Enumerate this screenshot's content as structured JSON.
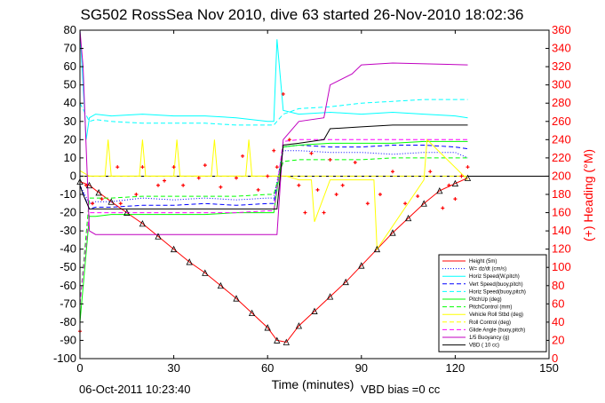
{
  "chart_data": {
    "type": "line",
    "title": "SG502 RossSea Nov 2010, dive 63 started 26-Nov-2010 18:02:36",
    "xlabel": "Time (minutes)",
    "ylabel_right": "(+) Heading (°M)",
    "xlim": [
      0,
      150
    ],
    "ylim": [
      -100,
      80
    ],
    "ylim_right": [
      0,
      360
    ],
    "x_ticks": [
      0,
      30,
      60,
      90,
      120,
      150
    ],
    "y_ticks": [
      -100,
      -90,
      -80,
      -70,
      -60,
      -50,
      -40,
      -30,
      -20,
      -10,
      0,
      10,
      20,
      30,
      40,
      50,
      60,
      70,
      80
    ],
    "y_right_ticks": [
      0,
      20,
      40,
      60,
      80,
      100,
      120,
      140,
      160,
      180,
      200,
      220,
      240,
      260,
      280,
      300,
      320,
      340,
      360
    ],
    "grid": false,
    "legend_position": "bottom-right",
    "series": [
      {
        "name": "Height (5m)",
        "color": "#ff0000",
        "style": "solid",
        "x": [
          0,
          3,
          6,
          10,
          15,
          20,
          25,
          30,
          35,
          40,
          45,
          50,
          55,
          60,
          63,
          66,
          70,
          75,
          80,
          85,
          90,
          95,
          100,
          105,
          110,
          115,
          120,
          124
        ],
        "y": [
          -3,
          -5,
          -9,
          -14,
          -20,
          -26,
          -33,
          -40,
          -47,
          -53,
          -60,
          -67,
          -75,
          -83,
          -90,
          -91,
          -82,
          -74,
          -66,
          -58,
          -49,
          -40,
          -31,
          -23,
          -15,
          -8,
          -4,
          -1
        ]
      },
      {
        "name": "W= dz/dt (cm/s)",
        "color": "#0000ff",
        "style": "dotted",
        "x": [
          0,
          3,
          5,
          10,
          20,
          30,
          40,
          50,
          60,
          62,
          65,
          70,
          80,
          90,
          100,
          110,
          120,
          124
        ],
        "y": [
          -5,
          -15,
          -14,
          -14,
          -12,
          -13,
          -12,
          -13,
          -12,
          -12,
          14,
          14,
          13,
          13,
          12,
          13,
          13,
          10
        ]
      },
      {
        "name": "Horiz Speed(W,pitch)",
        "color": "#00ffff",
        "style": "solid",
        "x": [
          0,
          2,
          3,
          5,
          10,
          20,
          30,
          40,
          50,
          60,
          62,
          63,
          65,
          70,
          80,
          90,
          100,
          110,
          120,
          124
        ],
        "y": [
          80,
          20,
          32,
          34,
          33,
          34,
          33,
          33,
          32,
          30,
          30,
          75,
          36,
          34,
          35,
          34,
          35,
          34,
          33,
          32
        ]
      },
      {
        "name": "Vert Speed(buoy,pitch)",
        "color": "#0000ff",
        "style": "dashed",
        "x": [
          0,
          3,
          5,
          10,
          20,
          30,
          40,
          50,
          60,
          62,
          65,
          70,
          80,
          90,
          100,
          110,
          120,
          124
        ],
        "y": [
          -5,
          -18,
          -17,
          -17,
          -16,
          -16,
          -15,
          -16,
          -15,
          -15,
          16,
          17,
          16,
          16,
          17,
          17,
          16,
          15
        ]
      },
      {
        "name": "Horiz Speed(buoy,pitch)",
        "color": "#00ffff",
        "style": "dashed",
        "x": [
          0,
          3,
          5,
          10,
          20,
          30,
          40,
          50,
          60,
          62,
          65,
          70,
          80,
          90,
          100,
          110,
          120,
          124
        ],
        "y": [
          40,
          30,
          31,
          30,
          29,
          29,
          29,
          28,
          28,
          28,
          34,
          37,
          38,
          40,
          41,
          42,
          42,
          42
        ]
      },
      {
        "name": "PitchUp (deg)",
        "color": "#00ff00",
        "style": "solid",
        "x": [
          0,
          3,
          5,
          10,
          20,
          30,
          40,
          50,
          60,
          62,
          65,
          70,
          80,
          90,
          100,
          110,
          120,
          124
        ],
        "y": [
          -80,
          -22,
          -22,
          -21,
          -21,
          -21,
          -21,
          -20,
          -20,
          -20,
          16,
          17,
          18,
          18,
          18,
          19,
          19,
          19
        ]
      },
      {
        "name": "PitchControl (mm)",
        "color": "#00ff00",
        "style": "dashed",
        "x": [
          0,
          3,
          5,
          10,
          20,
          30,
          40,
          50,
          60,
          62,
          65,
          70,
          80,
          90,
          100,
          110,
          120,
          124
        ],
        "y": [
          -70,
          -12,
          -12,
          -12,
          -11,
          -11,
          -11,
          -11,
          -10,
          -10,
          8,
          9,
          9,
          9,
          10,
          10,
          10,
          10
        ]
      },
      {
        "name": "Vehicle Roll Stbd (deg)",
        "color": "#ffff00",
        "style": "solid",
        "x": [
          0,
          3,
          8,
          9,
          10,
          19,
          20,
          21,
          30,
          31,
          32,
          42,
          43,
          44,
          53,
          54,
          55,
          62,
          66,
          70,
          74,
          75,
          80,
          90,
          94,
          95,
          110,
          111,
          124
        ],
        "y": [
          3,
          0,
          0,
          20,
          0,
          0,
          20,
          0,
          0,
          20,
          0,
          0,
          20,
          0,
          0,
          20,
          0,
          0,
          0,
          -2,
          -2,
          -25,
          -2,
          -2,
          -2,
          -40,
          -2,
          20,
          -2
        ]
      },
      {
        "name": "Roll Control (deg)",
        "color": "#ffff00",
        "style": "dashed",
        "x": [
          0,
          10,
          20,
          30,
          40,
          50,
          60,
          62,
          65,
          70,
          80,
          90,
          100,
          110,
          120,
          124
        ],
        "y": [
          0,
          0,
          0,
          0,
          0,
          0,
          0,
          0,
          0,
          0,
          0,
          0,
          0,
          0,
          0,
          0
        ]
      },
      {
        "name": "Glide Angle (buoy,pitch)",
        "color": "#ff00ff",
        "style": "dashed",
        "x": [
          0,
          3,
          5,
          10,
          20,
          30,
          40,
          50,
          60,
          62,
          65,
          70,
          80,
          90,
          100,
          110,
          120,
          124
        ],
        "y": [
          -70,
          -20,
          -20,
          -20,
          -20,
          -20,
          -20,
          -20,
          -19,
          -19,
          19,
          20,
          20,
          20,
          20,
          20,
          20,
          20
        ]
      },
      {
        "name": "1/5 Buoyancy (g)",
        "color": "#c000c0",
        "style": "solid",
        "x": [
          0,
          1,
          3,
          5,
          10,
          20,
          30,
          40,
          50,
          60,
          62,
          63,
          65,
          70,
          78,
          80,
          87,
          90,
          100,
          124
        ],
        "y": [
          80,
          60,
          -30,
          -32,
          -32,
          -32,
          -32,
          -32,
          -32,
          -32,
          -32,
          -32,
          20,
          30,
          32,
          50,
          56,
          61,
          62,
          61
        ]
      },
      {
        "name": "VBD ( 10 cc)",
        "color": "#000000",
        "style": "solid",
        "x": [
          0,
          1,
          3,
          5,
          10,
          20,
          30,
          40,
          50,
          60,
          62,
          63,
          65,
          70,
          78,
          80,
          90,
          100,
          110,
          124
        ],
        "y": [
          -5,
          -10,
          -18,
          -18,
          -18,
          -18,
          -18,
          -18,
          -18,
          -18,
          -18,
          -18,
          17,
          18,
          20,
          26,
          27,
          28,
          28,
          28
        ]
      }
    ],
    "heading_series": {
      "name": "(+) Heading (°M)",
      "color": "#ff0000",
      "x": [
        0,
        2,
        4,
        7,
        12,
        13,
        18,
        20,
        25,
        27,
        30,
        33,
        38,
        40,
        45,
        50,
        52,
        57,
        60,
        62,
        63,
        65,
        67,
        70,
        72,
        74,
        76,
        78,
        80,
        82,
        84,
        88,
        92,
        96,
        100,
        104,
        108,
        112,
        116,
        118,
        120,
        122,
        124
      ],
      "y": [
        30,
        190,
        170,
        175,
        210,
        170,
        180,
        210,
        190,
        195,
        210,
        190,
        198,
        212,
        188,
        198,
        222,
        185,
        200,
        228,
        210,
        290,
        240,
        190,
        160,
        225,
        185,
        160,
        218,
        180,
        190,
        215,
        170,
        180,
        205,
        170,
        178,
        205,
        165,
        190,
        175,
        200,
        210
      ]
    },
    "depth_markers": {
      "name": "depth",
      "color": "#000000",
      "x": [
        0,
        3,
        6,
        10,
        15,
        20,
        25,
        30,
        35,
        40,
        45,
        50,
        55,
        60,
        63,
        66,
        70,
        75,
        80,
        85,
        90,
        95,
        100,
        105,
        110,
        115,
        120,
        124
      ],
      "y": [
        -3,
        -5,
        -9,
        -14,
        -20,
        -26,
        -33,
        -40,
        -47,
        -53,
        -60,
        -67,
        -75,
        -83,
        -90,
        -91,
        -82,
        -74,
        -66,
        -58,
        -49,
        -40,
        -31,
        -23,
        -15,
        -8,
        -4,
        -1
      ]
    }
  },
  "footer": {
    "date": "06-Oct-2011 10:23:40",
    "vbd_bias": "VBD bias =0 cc"
  }
}
